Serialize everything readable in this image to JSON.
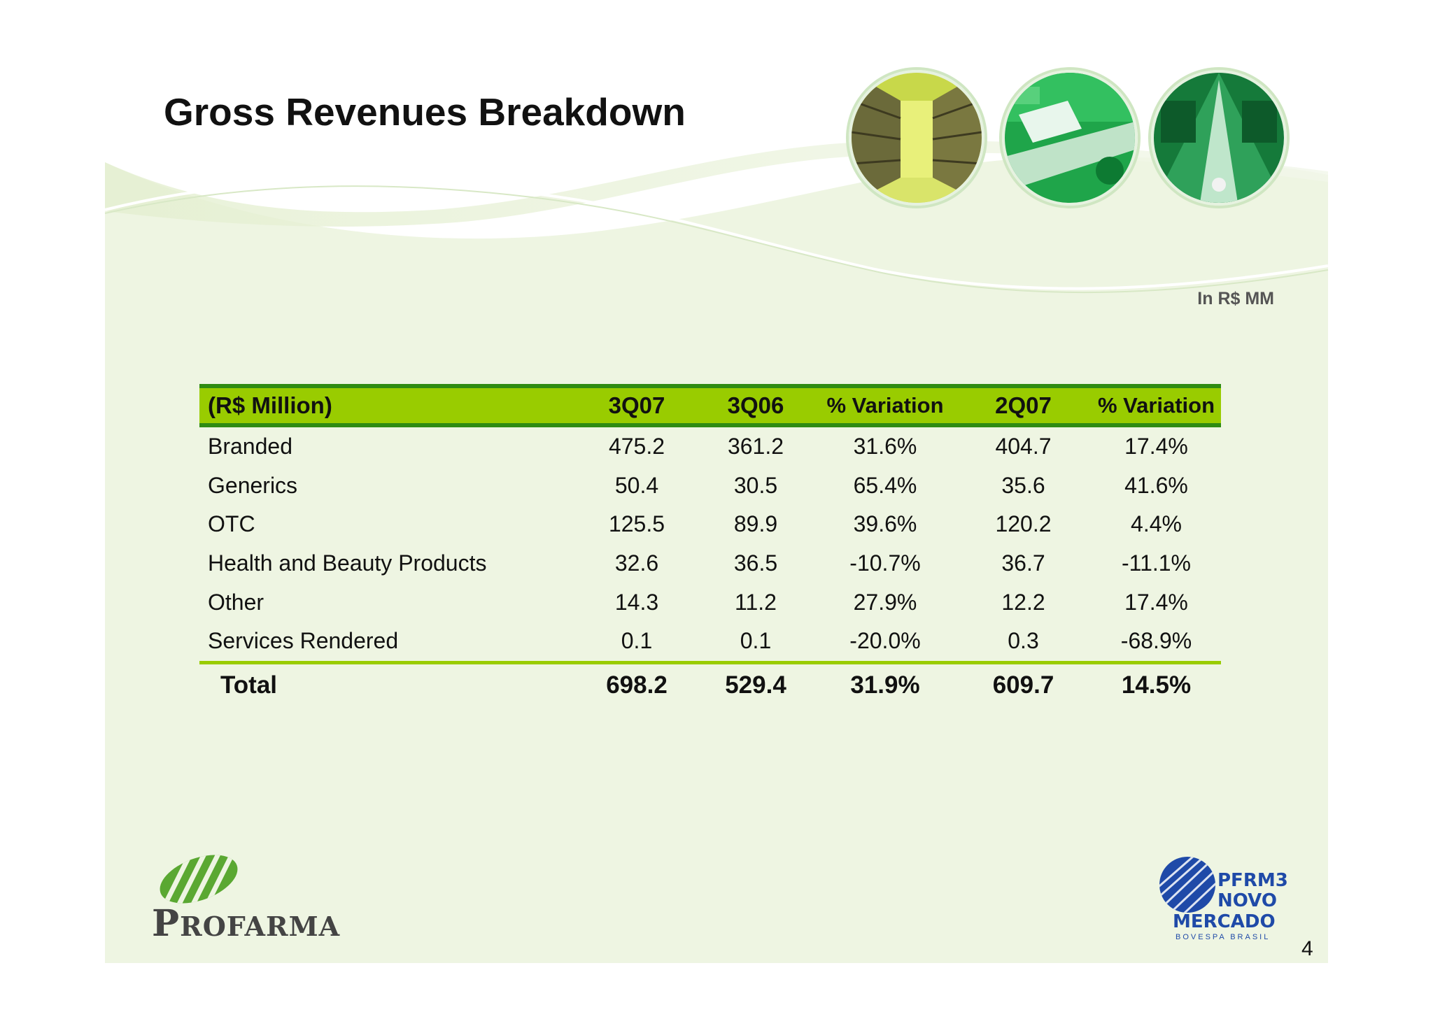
{
  "slide": {
    "title": "Gross Revenues Breakdown",
    "unit_note": "In R$ MM",
    "page_number": "4"
  },
  "table": {
    "headers": [
      "(R$ Million)",
      "3Q07",
      "3Q06",
      "% Variation",
      "2Q07",
      "% Variation"
    ],
    "rows": [
      [
        "Branded",
        "475.2",
        "361.2",
        "31.6%",
        "404.7",
        "17.4%"
      ],
      [
        "Generics",
        "50.4",
        "30.5",
        "65.4%",
        "35.6",
        "41.6%"
      ],
      [
        "OTC",
        "125.5",
        "89.9",
        "39.6%",
        "120.2",
        "4.4%"
      ],
      [
        "Health and Beauty Products",
        "32.6",
        "36.5",
        "-10.7%",
        "36.7",
        "-11.1%"
      ],
      [
        "Other",
        "14.3",
        "11.2",
        "27.9%",
        "12.2",
        "17.4%"
      ],
      [
        "Services Rendered",
        "0.1",
        "0.1",
        "-20.0%",
        "0.3",
        "-68.9%"
      ]
    ],
    "total": [
      "Total",
      "698.2",
      "529.4",
      "31.9%",
      "609.7",
      "14.5%"
    ]
  },
  "logos": {
    "left": {
      "initial": "P",
      "rest": "ROFARMA"
    },
    "right": {
      "line1": "PFRM3",
      "line2": "NOVO",
      "line3": "MERCADO",
      "line4": "BOVESPA BRASIL"
    }
  },
  "colors": {
    "header_green": "#99cc00",
    "header_border": "#2e8b12",
    "panel_bg": "#eef5e2",
    "logo_blue": "#1f4aa8"
  },
  "photos": [
    "warehouse-shelves-photo",
    "conveyor-photo",
    "sorting-machine-photo"
  ]
}
